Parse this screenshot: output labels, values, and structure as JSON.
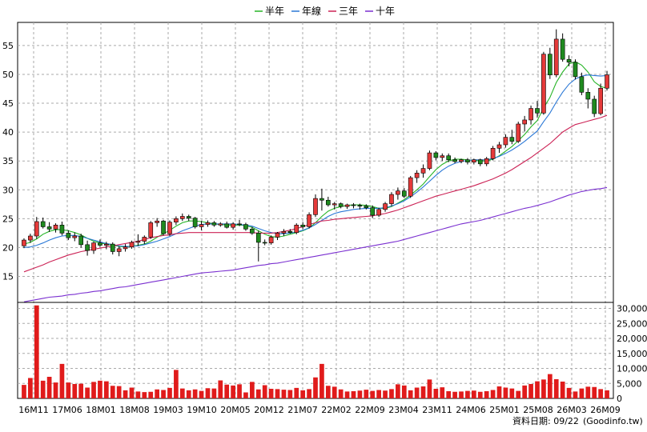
{
  "chart_data": [
    {
      "type": "candlestick",
      "title": "",
      "xlabel": "",
      "ylabel": "",
      "ylim": [
        10.5,
        59
      ],
      "yticks": [
        15,
        20,
        25,
        30,
        35,
        40,
        45,
        50,
        55
      ],
      "grid": true,
      "legend_position": "top-center",
      "x_tick_labels": [
        "16M11",
        "17M06",
        "18M01",
        "18M08",
        "19M03",
        "19M10",
        "20M05",
        "20M12",
        "21M07",
        "22M02",
        "22M09",
        "23M04",
        "23M11",
        "24M06",
        "25M01",
        "25M08",
        "26M03",
        "26M09"
      ],
      "up_color": "#e53a3a",
      "down_color": "#1f8a1f",
      "ohlc": [
        [
          20.3,
          21.6,
          19.9,
          21.3
        ],
        [
          21.3,
          22.4,
          20.8,
          22.0
        ],
        [
          22.0,
          25.3,
          21.5,
          24.5
        ],
        [
          24.5,
          25.2,
          23.3,
          23.6
        ],
        [
          23.6,
          24.4,
          22.7,
          23.2
        ],
        [
          23.2,
          24.2,
          22.6,
          23.9
        ],
        [
          23.9,
          24.5,
          22.1,
          22.5
        ],
        [
          22.5,
          23.0,
          21.3,
          21.7
        ],
        [
          21.7,
          22.6,
          21.1,
          22.0
        ],
        [
          22.0,
          22.4,
          20.0,
          20.5
        ],
        [
          20.5,
          21.2,
          18.6,
          19.5
        ],
        [
          19.5,
          21.0,
          18.9,
          20.8
        ],
        [
          20.8,
          21.4,
          20.1,
          20.4
        ],
        [
          20.4,
          21.0,
          19.7,
          20.6
        ],
        [
          20.6,
          20.9,
          18.8,
          19.3
        ],
        [
          19.3,
          20.2,
          18.5,
          19.8
        ],
        [
          19.8,
          20.6,
          19.3,
          20.1
        ],
        [
          20.1,
          21.2,
          19.8,
          20.9
        ],
        [
          20.9,
          22.3,
          20.3,
          21.1
        ],
        [
          21.1,
          22.1,
          20.6,
          21.8
        ],
        [
          21.8,
          24.6,
          21.5,
          24.3
        ],
        [
          24.3,
          25.1,
          23.6,
          24.6
        ],
        [
          24.6,
          24.8,
          22.1,
          22.4
        ],
        [
          22.4,
          24.7,
          22.0,
          24.4
        ],
        [
          24.4,
          25.4,
          23.9,
          25.0
        ],
        [
          25.0,
          25.9,
          24.6,
          25.4
        ],
        [
          25.4,
          25.7,
          24.6,
          25.1
        ],
        [
          25.1,
          25.3,
          23.3,
          23.6
        ],
        [
          23.6,
          24.6,
          23.0,
          24.0
        ],
        [
          24.0,
          24.7,
          23.6,
          24.3
        ],
        [
          24.3,
          24.6,
          23.6,
          23.9
        ],
        [
          23.9,
          24.4,
          23.6,
          24.1
        ],
        [
          24.1,
          24.5,
          23.3,
          23.5
        ],
        [
          23.5,
          24.4,
          23.1,
          24.1
        ],
        [
          24.1,
          24.8,
          23.7,
          24.0
        ],
        [
          24.0,
          24.3,
          22.9,
          23.2
        ],
        [
          23.2,
          23.6,
          22.2,
          22.5
        ],
        [
          22.5,
          22.9,
          17.6,
          20.9
        ],
        [
          20.9,
          21.4,
          20.4,
          20.8
        ],
        [
          20.8,
          22.1,
          20.5,
          21.8
        ],
        [
          21.8,
          22.7,
          21.3,
          22.5
        ],
        [
          22.5,
          23.2,
          22.0,
          22.8
        ],
        [
          22.8,
          23.2,
          22.4,
          22.6
        ],
        [
          22.6,
          24.2,
          22.3,
          23.9
        ],
        [
          23.9,
          24.4,
          23.2,
          23.6
        ],
        [
          23.6,
          26.1,
          23.3,
          25.7
        ],
        [
          25.7,
          29.2,
          25.3,
          28.5
        ],
        [
          28.5,
          30.2,
          26.4,
          28.2
        ],
        [
          28.2,
          28.8,
          27.1,
          27.4
        ],
        [
          27.4,
          27.9,
          26.6,
          27.6
        ],
        [
          27.6,
          27.8,
          26.8,
          27.1
        ],
        [
          27.1,
          27.6,
          26.7,
          27.4
        ],
        [
          27.4,
          27.7,
          26.8,
          27.3
        ],
        [
          27.3,
          27.6,
          26.6,
          27.2
        ],
        [
          27.2,
          27.5,
          26.6,
          26.9
        ],
        [
          26.9,
          27.3,
          25.1,
          25.6
        ],
        [
          25.6,
          26.9,
          25.3,
          26.6
        ],
        [
          26.6,
          27.9,
          26.2,
          27.6
        ],
        [
          27.6,
          29.6,
          27.2,
          29.2
        ],
        [
          29.2,
          30.4,
          28.3,
          29.8
        ],
        [
          29.8,
          30.3,
          28.6,
          28.9
        ],
        [
          28.9,
          32.4,
          28.6,
          32.1
        ],
        [
          32.1,
          33.4,
          31.2,
          32.9
        ],
        [
          32.9,
          34.4,
          32.1,
          33.7
        ],
        [
          33.7,
          36.8,
          33.4,
          36.4
        ],
        [
          36.4,
          36.7,
          35.1,
          35.6
        ],
        [
          35.6,
          36.3,
          35.0,
          35.9
        ],
        [
          35.9,
          36.3,
          34.8,
          35.2
        ],
        [
          35.2,
          35.6,
          34.6,
          34.9
        ],
        [
          34.9,
          35.4,
          34.6,
          35.2
        ],
        [
          35.2,
          35.5,
          34.4,
          34.8
        ],
        [
          34.8,
          35.4,
          34.4,
          35.2
        ],
        [
          35.2,
          35.4,
          34.1,
          34.5
        ],
        [
          34.5,
          35.7,
          34.1,
          35.4
        ],
        [
          35.4,
          37.6,
          35.1,
          37.2
        ],
        [
          37.2,
          38.3,
          36.4,
          37.8
        ],
        [
          37.8,
          39.6,
          37.3,
          39.1
        ],
        [
          39.1,
          40.4,
          37.9,
          38.4
        ],
        [
          38.4,
          41.8,
          38.1,
          41.4
        ],
        [
          41.4,
          42.8,
          40.1,
          42.1
        ],
        [
          42.1,
          44.6,
          41.3,
          44.1
        ],
        [
          44.1,
          45.4,
          42.5,
          43.3
        ],
        [
          43.3,
          53.9,
          43.0,
          53.5
        ],
        [
          53.5,
          54.6,
          49.2,
          49.9
        ],
        [
          49.9,
          57.8,
          49.5,
          56.1
        ],
        [
          56.1,
          57.1,
          52.2,
          52.6
        ],
        [
          52.6,
          53.3,
          51.4,
          52.1
        ],
        [
          52.1,
          52.6,
          49.1,
          49.6
        ],
        [
          49.6,
          50.3,
          46.4,
          46.9
        ],
        [
          46.9,
          47.6,
          44.1,
          45.7
        ],
        [
          45.7,
          46.3,
          42.6,
          43.2
        ],
        [
          43.2,
          48.4,
          42.9,
          47.6
        ],
        [
          47.6,
          50.6,
          47.2,
          49.9
        ]
      ],
      "series": [
        {
          "name": "半年",
          "color": "#25b425",
          "values": [
            20.6,
            20.9,
            21.5,
            22.3,
            22.8,
            23.1,
            23.1,
            22.9,
            22.6,
            22.2,
            21.6,
            21.1,
            20.8,
            20.6,
            20.4,
            20.2,
            20.1,
            20.2,
            20.4,
            20.6,
            21.1,
            21.8,
            22.4,
            23.0,
            23.7,
            24.3,
            24.6,
            24.6,
            24.5,
            24.3,
            24.1,
            24.0,
            23.9,
            23.9,
            23.9,
            23.8,
            23.5,
            22.9,
            22.3,
            21.9,
            21.8,
            22.0,
            22.3,
            22.6,
            22.9,
            23.4,
            24.3,
            25.4,
            26.3,
            26.8,
            27.1,
            27.3,
            27.4,
            27.4,
            27.3,
            27.1,
            26.8,
            26.8,
            27.1,
            27.7,
            28.3,
            29.1,
            30.0,
            31.0,
            32.3,
            33.5,
            34.4,
            35.0,
            35.3,
            35.3,
            35.2,
            35.1,
            35.0,
            35.0,
            35.3,
            35.9,
            36.7,
            37.5,
            38.5,
            39.6,
            40.9,
            42.0,
            44.2,
            46.0,
            48.6,
            50.4,
            51.8,
            52.2,
            51.6,
            50.4,
            48.7,
            47.9,
            47.6
          ]
        },
        {
          "name": "年線",
          "color": "#2a78d6",
          "values": [
            20.0,
            20.1,
            20.4,
            20.8,
            21.3,
            21.7,
            22.0,
            22.1,
            22.1,
            21.9,
            21.6,
            21.3,
            21.0,
            20.7,
            20.5,
            20.3,
            20.2,
            20.2,
            20.3,
            20.5,
            20.8,
            21.1,
            21.5,
            21.9,
            22.4,
            22.9,
            23.3,
            23.7,
            24.0,
            24.1,
            24.1,
            24.1,
            24.1,
            24.1,
            24.0,
            23.9,
            23.7,
            23.3,
            22.9,
            22.6,
            22.4,
            22.4,
            22.5,
            22.7,
            23.0,
            23.4,
            24.0,
            24.7,
            25.4,
            25.9,
            26.2,
            26.4,
            26.6,
            26.7,
            26.8,
            26.8,
            26.8,
            26.9,
            27.2,
            27.6,
            28.1,
            28.8,
            29.6,
            30.5,
            31.5,
            32.5,
            33.4,
            34.1,
            34.6,
            34.9,
            35.1,
            35.2,
            35.2,
            35.2,
            35.4,
            35.8,
            36.3,
            36.9,
            37.6,
            38.4,
            39.3,
            40.2,
            41.8,
            43.3,
            45.2,
            46.9,
            48.3,
            49.2,
            49.7,
            49.9,
            49.8,
            49.7,
            49.8
          ]
        },
        {
          "name": "三年",
          "color": "#cc2255",
          "values": [
            15.8,
            16.2,
            16.6,
            17.0,
            17.5,
            17.9,
            18.3,
            18.7,
            19.0,
            19.3,
            19.5,
            19.7,
            19.9,
            20.1,
            20.3,
            20.5,
            20.7,
            20.9,
            21.1,
            21.4,
            21.7,
            21.9,
            22.1,
            22.2,
            22.4,
            22.5,
            22.6,
            22.6,
            22.6,
            22.6,
            22.6,
            22.6,
            22.6,
            22.6,
            22.6,
            22.6,
            22.6,
            22.5,
            22.5,
            22.5,
            22.6,
            22.8,
            23.0,
            23.3,
            23.6,
            24.0,
            24.3,
            24.6,
            24.7,
            24.9,
            25.0,
            25.1,
            25.2,
            25.3,
            25.4,
            25.5,
            25.7,
            25.9,
            26.2,
            26.5,
            26.9,
            27.3,
            27.7,
            28.1,
            28.5,
            28.9,
            29.2,
            29.5,
            29.8,
            30.1,
            30.4,
            30.7,
            31.1,
            31.5,
            31.9,
            32.4,
            32.9,
            33.5,
            34.2,
            34.9,
            35.6,
            36.4,
            37.2,
            38.0,
            39.0,
            40.0,
            40.7,
            41.3,
            41.6,
            41.9,
            42.2,
            42.5,
            42.9
          ]
        },
        {
          "name": "十年",
          "color": "#7a2fd0",
          "values": [
            10.6,
            10.8,
            11.0,
            11.2,
            11.4,
            11.5,
            11.6,
            11.8,
            11.9,
            12.1,
            12.2,
            12.4,
            12.5,
            12.7,
            12.9,
            13.1,
            13.2,
            13.4,
            13.6,
            13.8,
            14.0,
            14.2,
            14.4,
            14.6,
            14.8,
            15.0,
            15.2,
            15.4,
            15.6,
            15.7,
            15.8,
            15.9,
            16.0,
            16.1,
            16.3,
            16.5,
            16.7,
            16.9,
            17.0,
            17.2,
            17.3,
            17.5,
            17.7,
            17.9,
            18.1,
            18.3,
            18.5,
            18.7,
            18.9,
            19.1,
            19.3,
            19.5,
            19.7,
            19.9,
            20.1,
            20.3,
            20.5,
            20.7,
            20.9,
            21.1,
            21.4,
            21.7,
            22.0,
            22.3,
            22.6,
            22.9,
            23.2,
            23.5,
            23.8,
            24.1,
            24.3,
            24.5,
            24.7,
            25.0,
            25.3,
            25.6,
            25.9,
            26.2,
            26.5,
            26.8,
            27.0,
            27.3,
            27.6,
            27.9,
            28.3,
            28.7,
            29.1,
            29.4,
            29.7,
            29.9,
            30.1,
            30.2,
            30.4
          ]
        }
      ]
    },
    {
      "type": "bar",
      "title": "",
      "xlabel": "",
      "ylabel": "",
      "ylim": [
        0,
        32000
      ],
      "yticks": [
        0,
        5000,
        10000,
        15000,
        20000,
        25000,
        30000
      ],
      "ytick_labels": [
        "0",
        "5,000",
        "10,000",
        "15,000",
        "20,000",
        "25,000",
        "30,000"
      ],
      "bar_color": "#e01b1b",
      "values": [
        4500,
        6800,
        31000,
        5900,
        7200,
        5300,
        11500,
        5300,
        4800,
        4900,
        3600,
        5500,
        5900,
        5700,
        4200,
        4100,
        2700,
        3600,
        2300,
        2100,
        2200,
        3000,
        2800,
        3500,
        9500,
        3300,
        2700,
        3000,
        2500,
        3400,
        3300,
        6000,
        4600,
        4300,
        4700,
        2000,
        5500,
        3000,
        4400,
        3200,
        3100,
        2900,
        2800,
        3500,
        2700,
        3100,
        7000,
        11500,
        4200,
        3900,
        3000,
        2300,
        2400,
        2600,
        2900,
        2500,
        2800,
        2600,
        3100,
        4700,
        4300,
        2700,
        3600,
        4000,
        6300,
        3200,
        3700,
        2400,
        2200,
        2300,
        2500,
        2600,
        2200,
        2400,
        2800,
        4000,
        3600,
        3300,
        2500,
        4300,
        4800,
        5700,
        6300,
        8100,
        6400,
        5600,
        3500,
        2300,
        3300,
        3900,
        3800,
        3100,
        2700
      ]
    }
  ],
  "legend": [
    {
      "label": "半年",
      "color": "#25b425"
    },
    {
      "label": "年線",
      "color": "#2a78d6"
    },
    {
      "label": "三年",
      "color": "#cc2255"
    },
    {
      "label": "十年",
      "color": "#7a2fd0"
    }
  ],
  "footer": {
    "date_text": "資料日期: 09/22",
    "source_text": "(Goodinfo.tw)"
  }
}
